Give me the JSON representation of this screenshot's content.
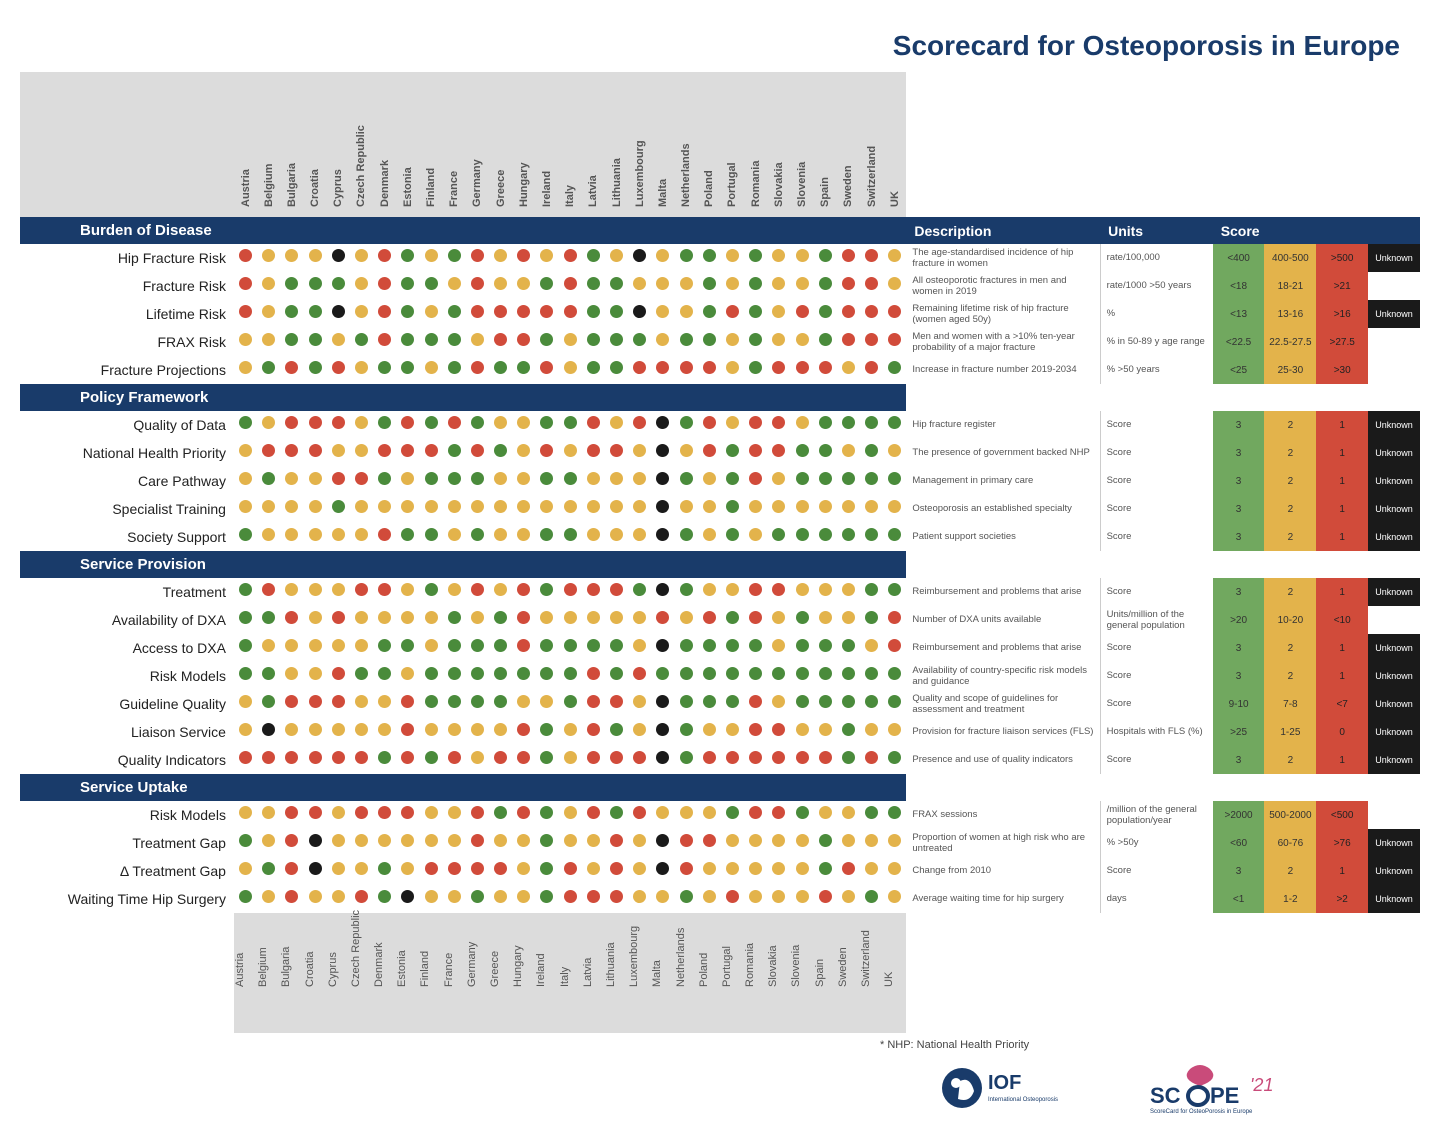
{
  "title": "Scorecard for Osteoporosis in Europe",
  "colors": {
    "green": "#4a8b3b",
    "yellow": "#e3b34b",
    "red": "#d14b3a",
    "black": "#1a1a1a",
    "header": "#193b6a",
    "grey": "#dcdcdc"
  },
  "countries": [
    "Austria",
    "Belgium",
    "Bulgaria",
    "Croatia",
    "Cyprus",
    "Czech Republic",
    "Denmark",
    "Estonia",
    "Finland",
    "France",
    "Germany",
    "Greece",
    "Hungary",
    "Ireland",
    "Italy",
    "Latvia",
    "Lithuania",
    "Luxembourg",
    "Malta",
    "Netherlands",
    "Poland",
    "Portugal",
    "Romania",
    "Slovakia",
    "Slovenia",
    "Spain",
    "Sweden",
    "Switzerland",
    "UK"
  ],
  "legend_headers": {
    "description": "Description",
    "units": "Units",
    "score": "Score"
  },
  "sections": [
    {
      "name": "Burden of Disease",
      "rows": [
        {
          "label": "Hip Fracture Risk",
          "desc": "The age-standardised incidence of hip fracture in women",
          "units": "rate/100,000",
          "scores": [
            "<400",
            "400-500",
            ">500",
            "Unknown"
          ],
          "dots": [
            "r",
            "y",
            "y",
            "y",
            "k",
            "y",
            "r",
            "g",
            "y",
            "g",
            "r",
            "y",
            "r",
            "y",
            "r",
            "g",
            "y",
            "k",
            "y",
            "g",
            "g",
            "y",
            "g",
            "y",
            "y",
            "g",
            "r",
            "r",
            "y"
          ]
        },
        {
          "label": "Fracture Risk",
          "desc": "All osteoporotic fractures in men and women in 2019",
          "units": "rate/1000 >50 years",
          "scores": [
            "<18",
            "18-21",
            ">21",
            ""
          ],
          "dots": [
            "r",
            "y",
            "g",
            "g",
            "g",
            "y",
            "r",
            "g",
            "g",
            "y",
            "r",
            "y",
            "y",
            "g",
            "r",
            "g",
            "g",
            "y",
            "y",
            "y",
            "g",
            "y",
            "g",
            "y",
            "y",
            "g",
            "r",
            "r",
            "y"
          ]
        },
        {
          "label": "Lifetime Risk",
          "desc": "Remaining lifetime risk of hip fracture (women aged 50y)",
          "units": "%",
          "scores": [
            "<13",
            "13-16",
            ">16",
            "Unknown"
          ],
          "dots": [
            "r",
            "y",
            "g",
            "g",
            "k",
            "y",
            "r",
            "g",
            "y",
            "g",
            "r",
            "r",
            "r",
            "r",
            "r",
            "g",
            "g",
            "k",
            "y",
            "y",
            "g",
            "r",
            "g",
            "y",
            "r",
            "g",
            "r",
            "r",
            "r"
          ]
        },
        {
          "label": "FRAX Risk",
          "desc": "Men and women with a >10% ten-year probability of a major fracture",
          "units": "% in 50-89 y age range",
          "scores": [
            "<22.5",
            "22.5-27.5",
            ">27.5",
            ""
          ],
          "dots": [
            "y",
            "y",
            "g",
            "g",
            "y",
            "g",
            "r",
            "g",
            "g",
            "g",
            "y",
            "r",
            "r",
            "g",
            "y",
            "g",
            "g",
            "g",
            "y",
            "g",
            "g",
            "y",
            "g",
            "y",
            "y",
            "g",
            "r",
            "r",
            "r"
          ]
        },
        {
          "label": "Fracture Projections",
          "desc": "Increase in fracture number 2019-2034",
          "units": "% >50 years",
          "scores": [
            "<25",
            "25-30",
            ">30",
            ""
          ],
          "dots": [
            "y",
            "g",
            "r",
            "g",
            "r",
            "y",
            "g",
            "g",
            "y",
            "g",
            "r",
            "g",
            "g",
            "r",
            "y",
            "g",
            "g",
            "r",
            "r",
            "r",
            "r",
            "y",
            "g",
            "r",
            "r",
            "r",
            "y",
            "r",
            "g"
          ]
        }
      ]
    },
    {
      "name": "Policy Framework",
      "rows": [
        {
          "label": "Quality of Data",
          "desc": "Hip fracture register",
          "units": "Score",
          "scores": [
            "3",
            "2",
            "1",
            "Unknown"
          ],
          "dots": [
            "g",
            "y",
            "r",
            "r",
            "r",
            "y",
            "g",
            "r",
            "g",
            "r",
            "g",
            "y",
            "y",
            "g",
            "g",
            "r",
            "y",
            "r",
            "k",
            "g",
            "r",
            "y",
            "r",
            "r",
            "y",
            "g",
            "g",
            "g",
            "g"
          ]
        },
        {
          "label": "National Health Priority",
          "desc": "The presence of government backed NHP",
          "units": "Score",
          "scores": [
            "3",
            "2",
            "1",
            "Unknown"
          ],
          "dots": [
            "y",
            "r",
            "r",
            "r",
            "y",
            "y",
            "r",
            "r",
            "r",
            "g",
            "r",
            "g",
            "y",
            "r",
            "y",
            "r",
            "r",
            "y",
            "k",
            "y",
            "r",
            "g",
            "r",
            "r",
            "g",
            "g",
            "y",
            "g",
            "y"
          ]
        },
        {
          "label": "Care Pathway",
          "desc": "Management in primary care",
          "units": "Score",
          "scores": [
            "3",
            "2",
            "1",
            "Unknown"
          ],
          "dots": [
            "y",
            "g",
            "y",
            "y",
            "r",
            "r",
            "g",
            "y",
            "g",
            "g",
            "g",
            "y",
            "y",
            "g",
            "g",
            "y",
            "y",
            "y",
            "k",
            "g",
            "y",
            "g",
            "r",
            "y",
            "g",
            "g",
            "g",
            "g",
            "g"
          ]
        },
        {
          "label": "Specialist Training",
          "desc": "Osteoporosis an established specialty",
          "units": "Score",
          "scores": [
            "3",
            "2",
            "1",
            "Unknown"
          ],
          "dots": [
            "y",
            "y",
            "y",
            "y",
            "g",
            "y",
            "y",
            "y",
            "y",
            "y",
            "y",
            "y",
            "y",
            "y",
            "y",
            "y",
            "y",
            "y",
            "k",
            "y",
            "y",
            "g",
            "y",
            "y",
            "y",
            "y",
            "y",
            "y",
            "y"
          ]
        },
        {
          "label": "Society Support",
          "desc": "Patient support societies",
          "units": "Score",
          "scores": [
            "3",
            "2",
            "1",
            "Unknown"
          ],
          "dots": [
            "g",
            "y",
            "y",
            "y",
            "y",
            "y",
            "r",
            "g",
            "g",
            "y",
            "g",
            "y",
            "y",
            "g",
            "g",
            "y",
            "y",
            "y",
            "k",
            "g",
            "y",
            "g",
            "y",
            "g",
            "g",
            "g",
            "g",
            "g",
            "g"
          ]
        }
      ]
    },
    {
      "name": "Service Provision",
      "rows": [
        {
          "label": "Treatment",
          "desc": "Reimbursement and problems that arise",
          "units": "Score",
          "scores": [
            "3",
            "2",
            "1",
            "Unknown"
          ],
          "dots": [
            "g",
            "r",
            "y",
            "y",
            "y",
            "r",
            "r",
            "y",
            "g",
            "y",
            "r",
            "y",
            "r",
            "g",
            "r",
            "r",
            "r",
            "g",
            "k",
            "g",
            "y",
            "y",
            "r",
            "r",
            "y",
            "y",
            "y",
            "g",
            "g"
          ]
        },
        {
          "label": "Availability of DXA",
          "desc": "Number of DXA units available",
          "units": "Units/million of the general population",
          "scores": [
            ">20",
            "10-20",
            "<10",
            ""
          ],
          "dots": [
            "g",
            "g",
            "r",
            "y",
            "r",
            "y",
            "y",
            "y",
            "y",
            "g",
            "y",
            "g",
            "r",
            "y",
            "y",
            "y",
            "y",
            "y",
            "r",
            "y",
            "r",
            "g",
            "r",
            "y",
            "g",
            "y",
            "y",
            "g",
            "r"
          ]
        },
        {
          "label": "Access to DXA",
          "desc": "Reimbursement and problems that arise",
          "units": "Score",
          "scores": [
            "3",
            "2",
            "1",
            "Unknown"
          ],
          "dots": [
            "g",
            "y",
            "y",
            "y",
            "y",
            "y",
            "g",
            "g",
            "y",
            "g",
            "g",
            "g",
            "r",
            "g",
            "g",
            "g",
            "g",
            "y",
            "k",
            "g",
            "g",
            "g",
            "g",
            "y",
            "g",
            "g",
            "g",
            "y",
            "r"
          ]
        },
        {
          "label": "Risk Models",
          "desc": "Availability of country-specific risk models and guidance",
          "units": "Score",
          "scores": [
            "3",
            "2",
            "1",
            "Unknown"
          ],
          "dots": [
            "g",
            "g",
            "y",
            "y",
            "r",
            "g",
            "g",
            "y",
            "g",
            "g",
            "g",
            "g",
            "g",
            "g",
            "g",
            "r",
            "g",
            "r",
            "g",
            "g",
            "g",
            "g",
            "g",
            "g",
            "g",
            "g",
            "g",
            "g",
            "g"
          ]
        },
        {
          "label": "Guideline Quality",
          "desc": "Quality and scope of guidelines for assessment and treatment",
          "units": "Score",
          "scores": [
            "9-10",
            "7-8",
            "<7",
            "Unknown"
          ],
          "dots": [
            "y",
            "g",
            "r",
            "r",
            "r",
            "y",
            "y",
            "r",
            "g",
            "g",
            "g",
            "g",
            "y",
            "y",
            "g",
            "r",
            "r",
            "y",
            "k",
            "g",
            "g",
            "g",
            "r",
            "y",
            "g",
            "g",
            "g",
            "g",
            "g"
          ]
        },
        {
          "label": "Liaison Service",
          "desc": "Provision for fracture liaison services (FLS)",
          "units": "Hospitals with FLS (%)",
          "scores": [
            ">25",
            "1-25",
            "0",
            "Unknown"
          ],
          "dots": [
            "y",
            "k",
            "y",
            "y",
            "y",
            "y",
            "y",
            "r",
            "y",
            "y",
            "y",
            "y",
            "r",
            "g",
            "y",
            "r",
            "g",
            "y",
            "k",
            "g",
            "y",
            "y",
            "r",
            "r",
            "y",
            "y",
            "g",
            "y",
            "y"
          ]
        },
        {
          "label": "Quality Indicators",
          "desc": "Presence and use of quality indicators",
          "units": "Score",
          "scores": [
            "3",
            "2",
            "1",
            "Unknown"
          ],
          "dots": [
            "r",
            "r",
            "r",
            "r",
            "r",
            "r",
            "g",
            "r",
            "g",
            "r",
            "y",
            "r",
            "r",
            "g",
            "y",
            "r",
            "r",
            "r",
            "k",
            "g",
            "r",
            "r",
            "r",
            "r",
            "r",
            "r",
            "g",
            "r",
            "g"
          ]
        }
      ]
    },
    {
      "name": "Service Uptake",
      "rows": [
        {
          "label": "Risk Models",
          "desc": "FRAX sessions",
          "units": "/million of the general population/year",
          "scores": [
            ">2000",
            "500-2000",
            "<500",
            ""
          ],
          "dots": [
            "y",
            "y",
            "r",
            "r",
            "y",
            "r",
            "r",
            "r",
            "y",
            "y",
            "r",
            "g",
            "r",
            "g",
            "y",
            "r",
            "g",
            "r",
            "y",
            "y",
            "y",
            "g",
            "r",
            "r",
            "g",
            "y",
            "y",
            "g",
            "g"
          ]
        },
        {
          "label": "Treatment Gap",
          "desc": "Proportion of women at high risk who are untreated",
          "units": "% >50y",
          "scores": [
            "<60",
            "60-76",
            ">76",
            "Unknown"
          ],
          "dots": [
            "g",
            "y",
            "r",
            "k",
            "y",
            "y",
            "y",
            "y",
            "y",
            "y",
            "r",
            "y",
            "y",
            "g",
            "y",
            "y",
            "r",
            "y",
            "k",
            "r",
            "r",
            "y",
            "y",
            "y",
            "y",
            "g",
            "y",
            "y",
            "y"
          ]
        },
        {
          "label": "Δ Treatment Gap",
          "desc": "Change from 2010",
          "units": "Score",
          "scores": [
            "3",
            "2",
            "1",
            "Unknown"
          ],
          "dots": [
            "y",
            "g",
            "r",
            "k",
            "y",
            "y",
            "g",
            "y",
            "r",
            "r",
            "r",
            "r",
            "y",
            "g",
            "r",
            "y",
            "r",
            "y",
            "k",
            "r",
            "y",
            "y",
            "y",
            "y",
            "y",
            "g",
            "r",
            "y",
            "y"
          ]
        },
        {
          "label": "Waiting Time Hip Surgery",
          "desc": "Average waiting time for hip surgery",
          "units": "days",
          "scores": [
            "<1",
            "1-2",
            ">2",
            "Unknown"
          ],
          "dots": [
            "g",
            "y",
            "r",
            "y",
            "y",
            "r",
            "g",
            "k",
            "y",
            "y",
            "g",
            "y",
            "y",
            "g",
            "r",
            "r",
            "r",
            "y",
            "y",
            "g",
            "y",
            "r",
            "y",
            "y",
            "y",
            "r",
            "y",
            "g",
            "y"
          ]
        }
      ]
    }
  ],
  "footnote": "* NHP: National Health Priority",
  "logos": {
    "iof": "IOF",
    "iof_sub": "International Osteoporosis Foundation",
    "scope": "SCOPE '21",
    "scope_sub": "ScoreCard for OsteoPorosis in Europe"
  }
}
